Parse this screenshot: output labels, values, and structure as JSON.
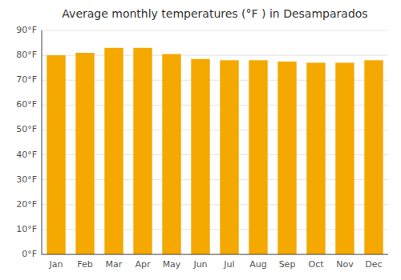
{
  "chart_data": {
    "type": "bar",
    "title": "Average monthly temperatures (°F ) in Desamparados",
    "categories": [
      "Jan",
      "Feb",
      "Mar",
      "Apr",
      "May",
      "Jun",
      "Jul",
      "Aug",
      "Sep",
      "Oct",
      "Nov",
      "Dec"
    ],
    "values": [
      80,
      81,
      83,
      83,
      80.5,
      78.5,
      78,
      78,
      77.5,
      77,
      77,
      78
    ],
    "color": "#F5A800",
    "ylim": [
      0,
      90
    ],
    "yticks": [
      {
        "value": 0,
        "label": "0°F"
      },
      {
        "value": 10,
        "label": "10°F"
      },
      {
        "value": 20,
        "label": "20°F"
      },
      {
        "value": 30,
        "label": "30°F"
      },
      {
        "value": 40,
        "label": "40°F"
      },
      {
        "value": 50,
        "label": "50°F"
      },
      {
        "value": 60,
        "label": "60°F"
      },
      {
        "value": 70,
        "label": "70°F"
      },
      {
        "value": 80,
        "label": "80°F"
      },
      {
        "value": 90,
        "label": "90°F"
      }
    ],
    "grid": true
  }
}
